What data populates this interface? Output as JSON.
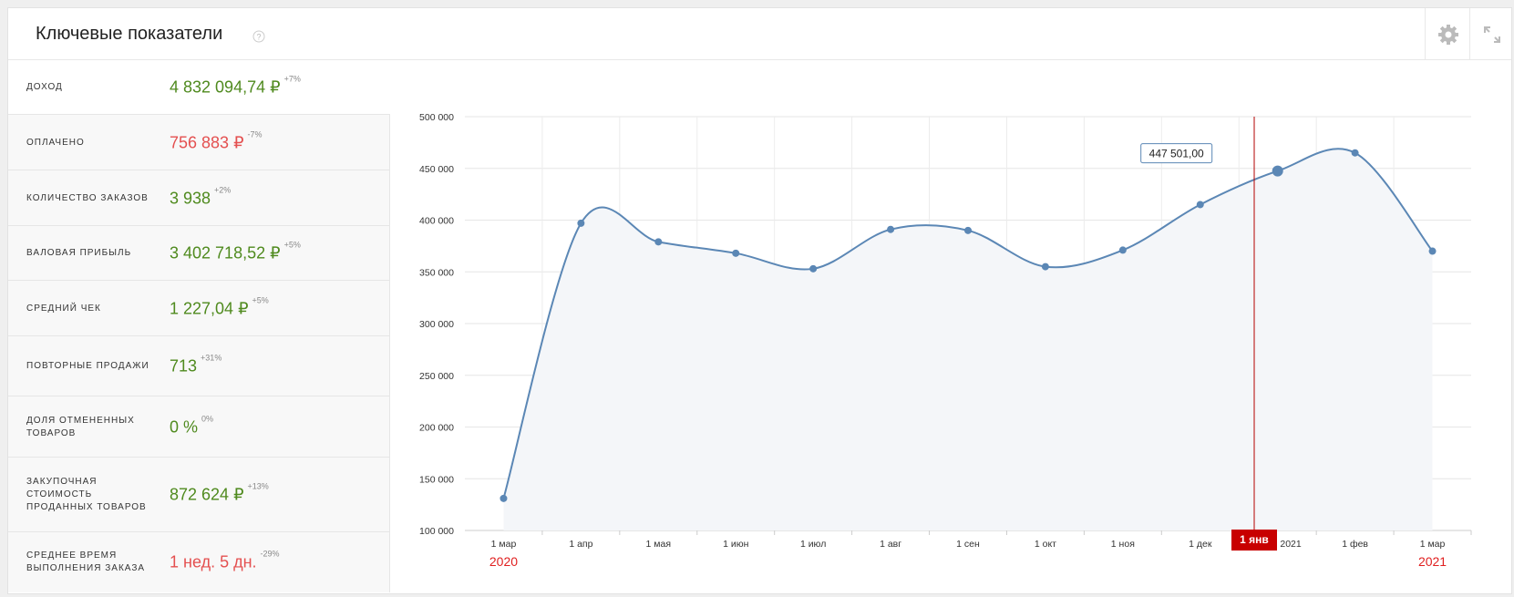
{
  "header": {
    "title": "Ключевые показатели"
  },
  "kpis": [
    {
      "label": "ДОХОД",
      "value": "4 832 094,74 ₽",
      "change": "+7%",
      "color": "#4f8a1e"
    },
    {
      "label": "ОПЛАЧЕНО",
      "value": "756 883 ₽",
      "change": "-7%",
      "color": "#e45050"
    },
    {
      "label": "КОЛИЧЕСТВО ЗАКАЗОВ",
      "value": "3 938",
      "change": "+2%",
      "color": "#4f8a1e"
    },
    {
      "label": "ВАЛОВАЯ ПРИБЫЛЬ",
      "value": "3 402 718,52 ₽",
      "change": "+5%",
      "color": "#4f8a1e"
    },
    {
      "label": "СРЕДНИЙ ЧЕК",
      "value": "1 227,04 ₽",
      "change": "+5%",
      "color": "#4f8a1e"
    },
    {
      "label": "ПОВТОРНЫЕ ПРОДАЖИ",
      "value": "713",
      "change": "+31%",
      "color": "#4f8a1e"
    },
    {
      "label": "ДОЛЯ ОТМЕНЕННЫХ ТОВАРОВ",
      "value": "0 %",
      "change": "0%",
      "color": "#4f8a1e"
    },
    {
      "label": "ЗАКУПОЧНАЯ СТОИМОСТЬ ПРОДАННЫХ ТОВАРОВ",
      "value": "872 624 ₽",
      "change": "+13%",
      "color": "#4f8a1e"
    },
    {
      "label": "СРЕДНЕЕ ВРЕМЯ ВЫПОЛНЕНИЯ ЗАКАЗА",
      "value": "1 нед. 5 дн.",
      "change": "-29%",
      "color": "#e45050"
    }
  ],
  "chart_data": {
    "type": "line",
    "categories": [
      "1 мар",
      "1 апр",
      "1 мая",
      "1 июн",
      "1 июл",
      "1 авг",
      "1 сен",
      "1 окт",
      "1 ноя",
      "1 дек",
      "1 янв 2021",
      "1 фев",
      "1 мар"
    ],
    "series": [
      {
        "name": "Доход",
        "color": "#5b87b5",
        "values": [
          131000,
          397000,
          379000,
          368000,
          353000,
          391000,
          390000,
          355000,
          371000,
          415000,
          447501,
          465000,
          370000
        ],
        "value_labels": [
          null,
          null,
          null,
          null,
          null,
          null,
          null,
          null,
          null,
          null,
          "447 501,00",
          null,
          null
        ]
      }
    ],
    "ylim": [
      100000,
      500000
    ],
    "yticks": [
      {
        "value": 100000,
        "label": "100 000"
      },
      {
        "value": 150000,
        "label": "150 000"
      },
      {
        "value": 200000,
        "label": "200 000"
      },
      {
        "value": 250000,
        "label": "250 000"
      },
      {
        "value": 300000,
        "label": "300 000"
      },
      {
        "value": 350000,
        "label": "350 000"
      },
      {
        "value": 400000,
        "label": "400 000"
      },
      {
        "value": 450000,
        "label": "450 000"
      },
      {
        "value": 500000,
        "label": "500 000"
      }
    ],
    "grid": true,
    "year_labels": [
      "2020",
      "2021"
    ],
    "crosshair_label": "1 янв"
  }
}
